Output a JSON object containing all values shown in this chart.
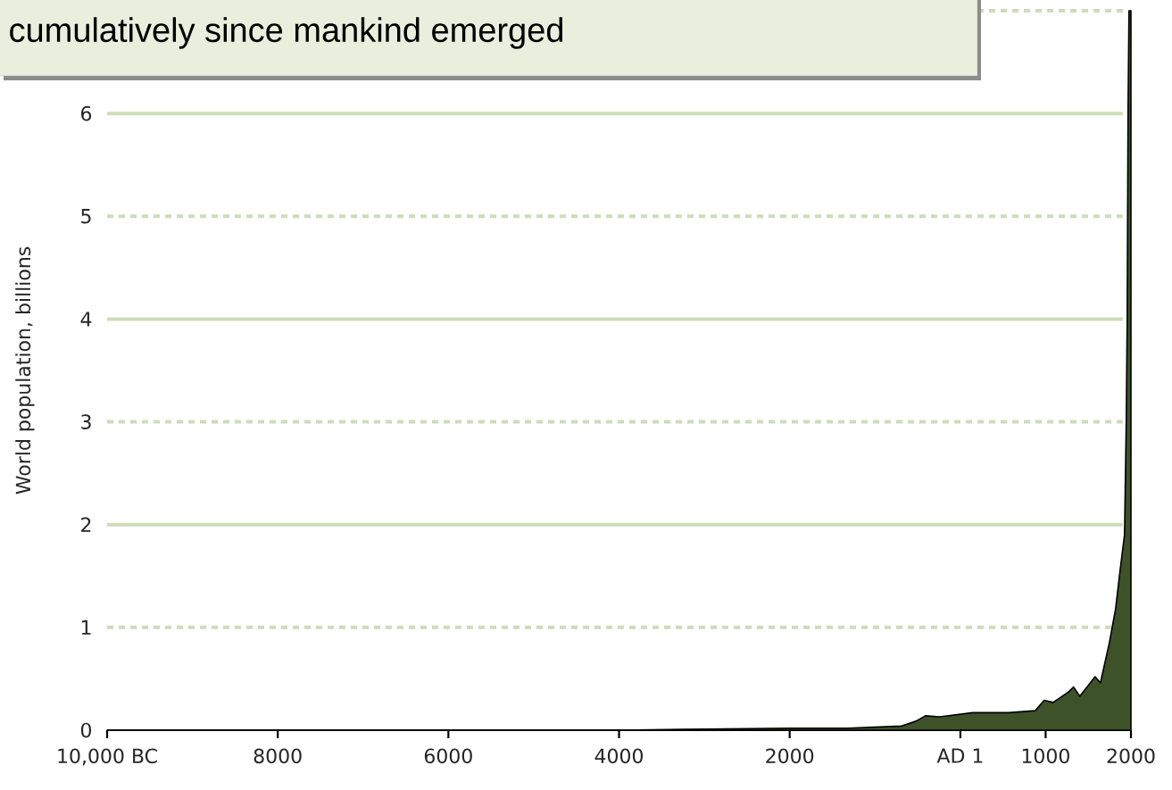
{
  "chart_data": {
    "type": "area",
    "ylabel": "World population, billions",
    "annotations": [
      "cumulatively since mankind emerged"
    ],
    "x": [
      -10000,
      -8000,
      -6000,
      -4000,
      -3000,
      -2000,
      -1318,
      -690,
      -513,
      -410,
      -240,
      146,
      565,
      879,
      983,
      1088,
      1265,
      1328,
      1400,
      1580,
      1642,
      1747,
      1820,
      1872,
      1925,
      1945,
      1956,
      1966,
      1977,
      2000
    ],
    "series": [
      {
        "color": "#3d5229",
        "values": [
          0,
          0,
          0,
          0,
          0.01,
          0.02,
          0.02,
          0.04,
          0.09,
          0.14,
          0.13,
          0.17,
          0.17,
          0.19,
          0.29,
          0.27,
          0.37,
          0.42,
          0.33,
          0.52,
          0.46,
          0.85,
          1.18,
          1.55,
          1.9,
          3.0,
          4.0,
          6.0,
          7.0,
          7.0
        ]
      }
    ],
    "xlim": [
      -10000,
      2000
    ],
    "ylim": [
      0,
      7
    ],
    "xticks": [
      {
        "value": -10000,
        "label": "10,000 BC"
      },
      {
        "value": -8000,
        "label": "8000"
      },
      {
        "value": -6000,
        "label": "6000"
      },
      {
        "value": -4000,
        "label": "4000"
      },
      {
        "value": -2000,
        "label": "2000"
      },
      {
        "value": 1,
        "label": "AD 1"
      },
      1000,
      2000
    ],
    "yticks": [
      0,
      1,
      2,
      3,
      4,
      5,
      6,
      {
        "value": 7,
        "label": null
      }
    ],
    "grid": "y"
  }
}
